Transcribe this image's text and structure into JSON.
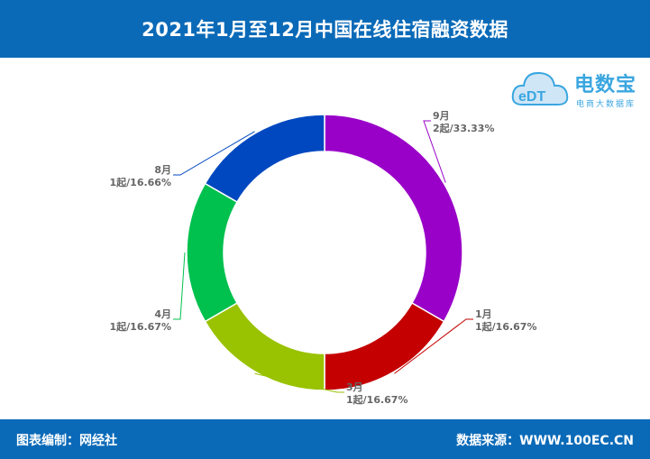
{
  "header": {
    "title": "2021年1月至12月中国在线住宿融资数据"
  },
  "footer": {
    "editor": "图表编制：网经社",
    "source": "数据来源：WWW.100EC.CN"
  },
  "logo": {
    "mark": "eDT",
    "name": "电数宝",
    "tagline": "电商大数据库"
  },
  "chart_data": {
    "type": "pie",
    "donut": true,
    "slices": [
      {
        "month": "9月",
        "value": 2,
        "label": "2起/33.33%",
        "color": "#9900c8"
      },
      {
        "month": "1月",
        "value": 1,
        "label": "1起/16.67%",
        "color": "#c40000"
      },
      {
        "month": "3月",
        "value": 1,
        "label": "1起/16.67%",
        "color": "#99c200"
      },
      {
        "month": "4月",
        "value": 1,
        "label": "1起/16.67%",
        "color": "#00c04e"
      },
      {
        "month": "8月",
        "value": 1,
        "label": "1起/16.66%",
        "color": "#0048c0"
      }
    ]
  }
}
